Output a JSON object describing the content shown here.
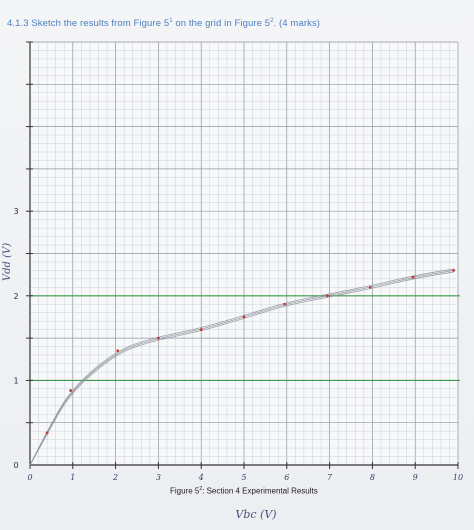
{
  "question": {
    "prefix": "4.1.3 Sketch the results from Figure 5",
    "sup1": "1",
    "middle": " on the grid in Figure 5",
    "sup2": "2",
    "suffix": ". (4 marks)"
  },
  "caption": {
    "prefix": "Figure 5",
    "sup": "2",
    "suffix": ": Section 4 Experimental Results"
  },
  "chart_data": {
    "type": "line",
    "xlabel": "Vbc (V)",
    "ylabel": "Vdd (V)",
    "xlim": [
      0,
      10
    ],
    "ylim": [
      0,
      5.0
    ],
    "x_ticks": [
      "0",
      "1",
      "2",
      "3",
      "4",
      "5",
      "6",
      "7",
      "8",
      "9",
      "10"
    ],
    "y_ticks": [
      "0",
      "1",
      "2",
      "3"
    ],
    "grid": true,
    "points": {
      "x": [
        0.4,
        0.95,
        2.05,
        3.0,
        4.0,
        5.0,
        5.95,
        6.95,
        7.95,
        8.95,
        9.9
      ],
      "y": [
        0.38,
        0.88,
        1.35,
        1.5,
        1.6,
        1.75,
        1.9,
        2.0,
        2.1,
        2.22,
        2.3
      ]
    },
    "reference_lines_y": [
      1,
      2
    ],
    "colors": {
      "grid_minor": "#c4c8d0",
      "grid_major": "#8f95a0",
      "reference_line": "#3a9a4a",
      "curve": "#8c8f99",
      "points": "#c23a3a"
    }
  }
}
